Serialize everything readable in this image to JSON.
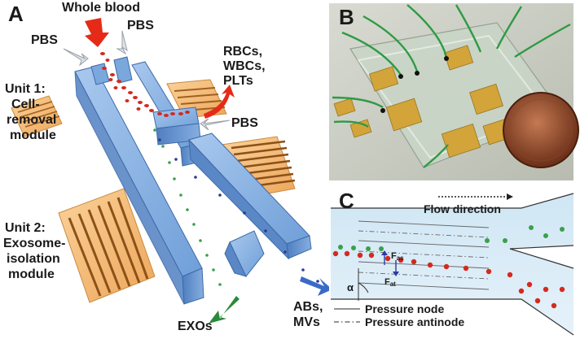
{
  "panels": {
    "a": {
      "letter": "A",
      "labels": {
        "whole_blood": "Whole blood",
        "pbs_left": "PBS",
        "pbs_top": "PBS",
        "pbs_right": "PBS",
        "rbcs_1": "RBCs,",
        "rbcs_2": "WBCs,",
        "rbcs_3": "PLTs",
        "unit1_1": "Unit 1:",
        "unit1_2": "Cell-",
        "unit1_3": "removal",
        "unit1_4": "module",
        "unit2_1": "Unit 2:",
        "unit2_2": "Exosome-",
        "unit2_3": "isolation",
        "unit2_4": "module",
        "exos": "EXOs",
        "abs_1": "ABs,",
        "abs_2": "MVs"
      }
    },
    "b": {
      "letter": "B"
    },
    "c": {
      "letter": "C",
      "labels": {
        "flow_direction": "Flow direction",
        "fas": "F",
        "fas_sub": "as",
        "fat": "F",
        "fat_sub": "at",
        "alpha": "α",
        "pressure_node": "Pressure node",
        "pressure_antinode": "Pressure antinode"
      }
    }
  },
  "colors": {
    "channel": "#7aa8dc",
    "electrode": "#f2b870",
    "rbc": "#d42a1e",
    "green_particle": "#3aa04a",
    "blue_particle": "#2a3a9a",
    "arrow_red": "#e62a18",
    "arrow_green": "#2a8a3a",
    "arrow_blue": "#3a6ac8"
  }
}
